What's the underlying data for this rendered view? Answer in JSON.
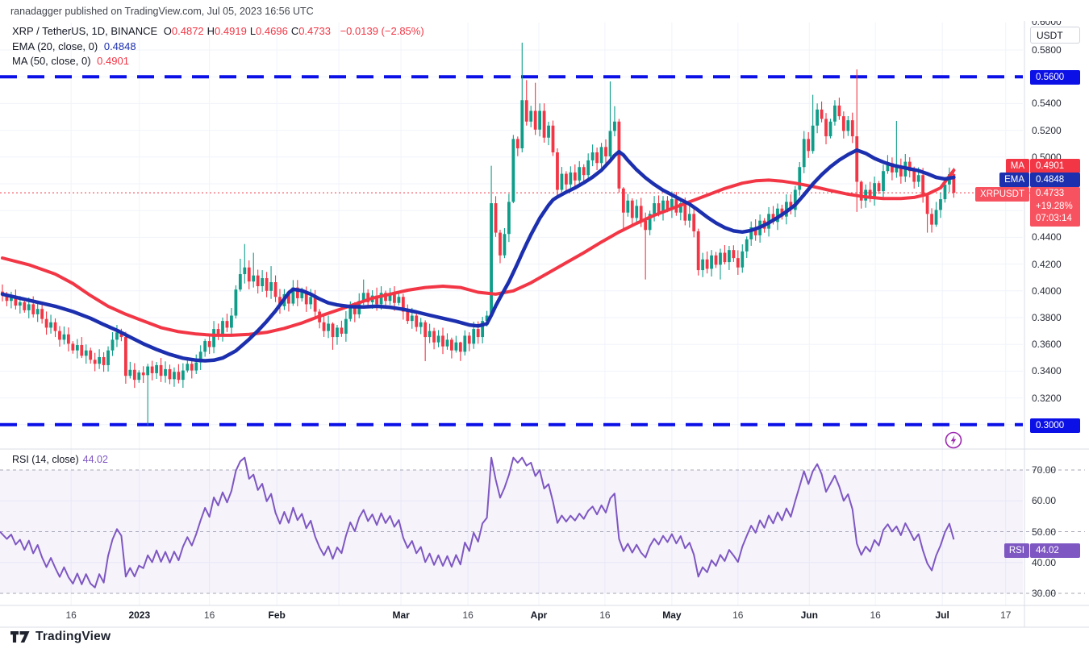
{
  "attribution": "ranadagger published on TradingView.com, Jul 05, 2023 16:56 UTC",
  "legend": {
    "symbol": "XRP / TetherUS, 1D, BINANCE",
    "ohlc": [
      {
        "k": "O",
        "v": "0.4872"
      },
      {
        "k": "H",
        "v": "0.4919"
      },
      {
        "k": "L",
        "v": "0.4696"
      },
      {
        "k": "C",
        "v": "0.4733"
      }
    ],
    "change": "−0.0139 (−2.85%)",
    "ema_label": "EMA (20, close, 0)",
    "ema_value": "0.4848",
    "ma_label": "MA (50, close, 0)",
    "ma_value": "0.4901"
  },
  "rsi_legend": {
    "label": "RSI (14, close)",
    "value": "44.02"
  },
  "axis": {
    "currency_box": "USDT",
    "top_partial_label": "0.6000",
    "price_ticks": [
      {
        "label": "0.5800",
        "value": 0.58
      },
      {
        "label": "0.5400",
        "value": 0.54
      },
      {
        "label": "0.5200",
        "value": 0.52
      },
      {
        "label": "0.5000",
        "value": 0.5
      },
      {
        "label": "0.4400",
        "value": 0.44
      },
      {
        "label": "0.4200",
        "value": 0.42
      },
      {
        "label": "0.4000",
        "value": 0.4
      },
      {
        "label": "0.3800",
        "value": 0.38
      },
      {
        "label": "0.3600",
        "value": 0.36
      },
      {
        "label": "0.3400",
        "value": 0.34
      },
      {
        "label": "0.3200",
        "value": 0.32
      }
    ],
    "rsi_ticks": [
      {
        "label": "70.00",
        "value": 70
      },
      {
        "label": "60.00",
        "value": 60
      },
      {
        "label": "50.00",
        "value": 50
      },
      {
        "label": "40.00",
        "value": 40
      },
      {
        "label": "30.00",
        "value": 30
      }
    ],
    "x_ticks": [
      {
        "label": "16",
        "pos": 15.6,
        "bold": false
      },
      {
        "label": "2023",
        "pos": 31.1,
        "bold": true
      },
      {
        "label": "16",
        "pos": 47.0,
        "bold": false
      },
      {
        "label": "Feb",
        "pos": 62.3,
        "bold": true
      },
      {
        "label": "Mar",
        "pos": 90.5,
        "bold": true
      },
      {
        "label": "16",
        "pos": 105.7,
        "bold": false
      },
      {
        "label": "Apr",
        "pos": 121.8,
        "bold": true
      },
      {
        "label": "16",
        "pos": 136.8,
        "bold": false
      },
      {
        "label": "May",
        "pos": 152.0,
        "bold": true
      },
      {
        "label": "16",
        "pos": 167.0,
        "bold": false
      },
      {
        "label": "Jun",
        "pos": 183.2,
        "bold": true
      },
      {
        "label": "16",
        "pos": 198.2,
        "bold": false
      },
      {
        "label": "Jul",
        "pos": 213.4,
        "bold": true
      },
      {
        "label": "17",
        "pos": 227.8,
        "bold": false
      }
    ],
    "extra_grid_pos": [
      76.4
    ],
    "badges": {
      "resistance": {
        "label": "0.5600",
        "value": 0.56
      },
      "support": {
        "label": "0.3000",
        "value": 0.3
      },
      "ma": {
        "tag": "MA",
        "label": "0.4901",
        "value": 0.4901
      },
      "ema": {
        "tag": "EMA",
        "label": "0.4848",
        "value": 0.4848
      },
      "last": {
        "tag": "XRPUSDT",
        "price": "0.4733",
        "change": "+19.28%",
        "countdown": "07:03:14",
        "value": 0.4733
      },
      "rsi": {
        "tag": "RSI",
        "label": "44.02",
        "value": 44.02
      }
    }
  },
  "footer": {
    "brand": "TradingView"
  },
  "colors": {
    "up": "#0f9d8a",
    "down": "#f23645",
    "ma50": "#f23645",
    "ema20": "#1c2fae",
    "level": "#0b10e6",
    "last_price_line": "#f23645",
    "rsi": "#7e57c2",
    "rsi_band_fill": "#7e57c2",
    "grid": "#f0f3fa",
    "separator": "#d8dce5",
    "rsi_dashed": "#a5a8b6"
  },
  "chart_data": {
    "type": "candlestick",
    "title": "XRP / TetherUS, 1D, BINANCE",
    "ylabel": "USDT",
    "price_axis_range": [
      0.2875,
      0.6
    ],
    "rsi_axis_range": [
      26,
      74
    ],
    "levels": [
      0.56,
      0.3
    ],
    "last_price": 0.4733,
    "grid_price_top": 0.58,
    "grid_price_step": 0.02,
    "grid_price_count": 15,
    "candles": {
      "first_open": 0.3995,
      "closes": [
        0.397,
        0.3925,
        0.395,
        0.389,
        0.3915,
        0.3855,
        0.39,
        0.3825,
        0.3865,
        0.379,
        0.3725,
        0.3765,
        0.37,
        0.3635,
        0.3675,
        0.3605,
        0.3555,
        0.3595,
        0.3515,
        0.3555,
        0.3485,
        0.3455,
        0.3505,
        0.3445,
        0.3555,
        0.3635,
        0.369,
        0.3655,
        0.3365,
        0.341,
        0.3335,
        0.339,
        0.337,
        0.3435,
        0.3385,
        0.3445,
        0.3365,
        0.3415,
        0.334,
        0.3395,
        0.3335,
        0.3405,
        0.3455,
        0.3405,
        0.3465,
        0.3545,
        0.3625,
        0.358,
        0.3715,
        0.3675,
        0.3775,
        0.3725,
        0.3815,
        0.401,
        0.4125,
        0.4175,
        0.407,
        0.4115,
        0.4035,
        0.4095,
        0.4,
        0.4065,
        0.3955,
        0.3885,
        0.3975,
        0.3905,
        0.4025,
        0.3945,
        0.3995,
        0.39,
        0.3955,
        0.3845,
        0.3765,
        0.37,
        0.3755,
        0.3655,
        0.3725,
        0.368,
        0.379,
        0.3885,
        0.3825,
        0.3925,
        0.3985,
        0.3915,
        0.3965,
        0.39,
        0.3985,
        0.3925,
        0.3975,
        0.391,
        0.3955,
        0.3845,
        0.3775,
        0.3815,
        0.373,
        0.3765,
        0.3655,
        0.37,
        0.3615,
        0.3665,
        0.3585,
        0.3635,
        0.3555,
        0.3615,
        0.3545,
        0.3665,
        0.3605,
        0.3715,
        0.3655,
        0.3775,
        0.3815,
        0.4655,
        0.4435,
        0.4265,
        0.4425,
        0.4665,
        0.5135,
        0.5065,
        0.5425,
        0.5265,
        0.5345,
        0.5205,
        0.5345,
        0.5145,
        0.5235,
        0.5035,
        0.4755,
        0.4875,
        0.4795,
        0.4885,
        0.4825,
        0.4925,
        0.4865,
        0.4975,
        0.5035,
        0.4955,
        0.5075,
        0.5005,
        0.5195,
        0.5265,
        0.4765,
        0.4585,
        0.4675,
        0.4545,
        0.4635,
        0.4525,
        0.4455,
        0.4575,
        0.4655,
        0.4585,
        0.4675,
        0.4605,
        0.4685,
        0.4585,
        0.4655,
        0.4525,
        0.4575,
        0.4445,
        0.4155,
        0.4235,
        0.4165,
        0.4265,
        0.4195,
        0.4285,
        0.4215,
        0.4305,
        0.4245,
        0.4175,
        0.4295,
        0.4385,
        0.4475,
        0.4415,
        0.4525,
        0.4465,
        0.4575,
        0.4515,
        0.4615,
        0.4555,
        0.4665,
        0.4605,
        0.4755,
        0.4925,
        0.5135,
        0.5045,
        0.5235,
        0.5355,
        0.5285,
        0.5155,
        0.5265,
        0.5385,
        0.5305,
        0.5195,
        0.5275,
        0.5155,
        0.4815,
        0.4675,
        0.4755,
        0.4695,
        0.4805,
        0.4745,
        0.4895,
        0.4955,
        0.4885,
        0.4935,
        0.4855,
        0.4965,
        0.4895,
        0.4815,
        0.4865,
        0.4715,
        0.4575,
        0.4495,
        0.4605,
        0.4685,
        0.4795,
        0.4872,
        0.4733
      ],
      "wick_overrides": {
        "33": [
          0.3455,
          0.2995
        ],
        "54": [
          0.424,
          0.3995
        ],
        "55": [
          0.435,
          0.4055
        ],
        "57": [
          0.4285,
          0.4025
        ],
        "61": [
          0.4185,
          0.394
        ],
        "75": [
          0.3765,
          0.356
        ],
        "82": [
          0.4085,
          0.3895
        ],
        "96": [
          0.378,
          0.3475
        ],
        "104": [
          0.362,
          0.3476
        ],
        "111": [
          0.4935,
          0.3795
        ],
        "116": [
          0.5165,
          0.4655
        ],
        "118": [
          0.5855,
          0.5035
        ],
        "119": [
          0.5575,
          0.5235
        ],
        "121": [
          0.5555,
          0.5165
        ],
        "126": [
          0.5065,
          0.4715
        ],
        "138": [
          0.5565,
          0.4985
        ],
        "139": [
          0.538,
          0.5155
        ],
        "140": [
          0.5285,
          0.4735
        ],
        "141": [
          0.4775,
          0.4445
        ],
        "146": [
          0.4585,
          0.4085
        ],
        "158": [
          0.4465,
          0.4115
        ],
        "163": [
          0.4315,
          0.4085
        ],
        "184": [
          0.5465,
          0.5025
        ],
        "189": [
          0.5425,
          0.5235
        ],
        "194": [
          0.5655,
          0.459
        ],
        "195": [
          0.4825,
          0.4615
        ],
        "203": [
          0.527,
          0.4845
        ],
        "210": [
          0.4725,
          0.4435
        ],
        "216": [
          0.4919,
          0.4696
        ]
      }
    },
    "series": [
      {
        "name": "MA 50",
        "points": [
          [
            0,
            0.4246
          ],
          [
            6,
            0.4195
          ],
          [
            12,
            0.4125
          ],
          [
            16,
            0.4055
          ],
          [
            20,
            0.3965
          ],
          [
            24,
            0.3885
          ],
          [
            28,
            0.3825
          ],
          [
            32,
            0.3775
          ],
          [
            36,
            0.3725
          ],
          [
            40,
            0.3695
          ],
          [
            44,
            0.3678
          ],
          [
            48,
            0.3668
          ],
          [
            52,
            0.3668
          ],
          [
            56,
            0.3675
          ],
          [
            60,
            0.369
          ],
          [
            64,
            0.372
          ],
          [
            68,
            0.376
          ],
          [
            72,
            0.381
          ],
          [
            76,
            0.3855
          ],
          [
            80,
            0.39
          ],
          [
            84,
            0.3945
          ],
          [
            88,
            0.3975
          ],
          [
            92,
            0.4005
          ],
          [
            96,
            0.4025
          ],
          [
            100,
            0.4035
          ],
          [
            104,
            0.4025
          ],
          [
            108,
            0.399
          ],
          [
            112,
            0.3975
          ],
          [
            116,
            0.4
          ],
          [
            120,
            0.406
          ],
          [
            124,
            0.4135
          ],
          [
            128,
            0.421
          ],
          [
            132,
            0.4285
          ],
          [
            136,
            0.4365
          ],
          [
            140,
            0.444
          ],
          [
            144,
            0.4505
          ],
          [
            148,
            0.4565
          ],
          [
            152,
            0.4615
          ],
          [
            156,
            0.4665
          ],
          [
            160,
            0.4715
          ],
          [
            164,
            0.4765
          ],
          [
            168,
            0.4805
          ],
          [
            171,
            0.4822
          ],
          [
            174,
            0.4828
          ],
          [
            177,
            0.482
          ],
          [
            180,
            0.4805
          ],
          [
            184,
            0.478
          ],
          [
            188,
            0.475
          ],
          [
            192,
            0.4722
          ],
          [
            196,
            0.4702
          ],
          [
            200,
            0.469
          ],
          [
            204,
            0.469
          ],
          [
            207,
            0.4698
          ],
          [
            210,
            0.4722
          ],
          [
            213,
            0.477
          ],
          [
            216,
            0.4901
          ]
        ]
      },
      {
        "name": "EMA 20",
        "points": [
          [
            0,
            0.3975
          ],
          [
            4,
            0.3945
          ],
          [
            8,
            0.3915
          ],
          [
            12,
            0.3885
          ],
          [
            16,
            0.3845
          ],
          [
            20,
            0.3795
          ],
          [
            23,
            0.3748
          ],
          [
            26,
            0.3705
          ],
          [
            29,
            0.3655
          ],
          [
            32,
            0.3605
          ],
          [
            35,
            0.3562
          ],
          [
            38,
            0.3525
          ],
          [
            41,
            0.3497
          ],
          [
            44,
            0.3482
          ],
          [
            46,
            0.3478
          ],
          [
            48,
            0.3482
          ],
          [
            50,
            0.3498
          ],
          [
            53,
            0.3552
          ],
          [
            56,
            0.3638
          ],
          [
            58,
            0.3702
          ],
          [
            60,
            0.3772
          ],
          [
            62,
            0.385
          ],
          [
            64,
            0.394
          ],
          [
            65,
            0.3985
          ],
          [
            66,
            0.4012
          ],
          [
            68,
            0.4002
          ],
          [
            70,
            0.3975
          ],
          [
            72,
            0.394
          ],
          [
            74,
            0.391
          ],
          [
            76,
            0.3895
          ],
          [
            79,
            0.3882
          ],
          [
            82,
            0.388
          ],
          [
            85,
            0.3885
          ],
          [
            88,
            0.3878
          ],
          [
            91,
            0.3862
          ],
          [
            94,
            0.3842
          ],
          [
            97,
            0.3818
          ],
          [
            100,
            0.3795
          ],
          [
            103,
            0.3772
          ],
          [
            106,
            0.3745
          ],
          [
            108,
            0.3738
          ],
          [
            110,
            0.3755
          ],
          [
            111,
            0.3818
          ],
          [
            112,
            0.3888
          ],
          [
            113,
            0.395
          ],
          [
            114,
            0.4008
          ],
          [
            115,
            0.4068
          ],
          [
            116,
            0.4138
          ],
          [
            117,
            0.4208
          ],
          [
            118,
            0.4282
          ],
          [
            119,
            0.4352
          ],
          [
            120,
            0.442
          ],
          [
            121,
            0.4482
          ],
          [
            122,
            0.4542
          ],
          [
            123,
            0.4592
          ],
          [
            124,
            0.464
          ],
          [
            125,
            0.468
          ],
          [
            126,
            0.4702
          ],
          [
            128,
            0.4738
          ],
          [
            130,
            0.477
          ],
          [
            132,
            0.4808
          ],
          [
            134,
            0.485
          ],
          [
            136,
            0.4902
          ],
          [
            138,
            0.4972
          ],
          [
            139,
            0.5012
          ],
          [
            140,
            0.504
          ],
          [
            141,
            0.5015
          ],
          [
            142,
            0.4975
          ],
          [
            144,
            0.4905
          ],
          [
            146,
            0.4845
          ],
          [
            148,
            0.4795
          ],
          [
            150,
            0.4752
          ],
          [
            152,
            0.4718
          ],
          [
            154,
            0.4682
          ],
          [
            156,
            0.4648
          ],
          [
            158,
            0.4602
          ],
          [
            160,
            0.4552
          ],
          [
            162,
            0.4508
          ],
          [
            164,
            0.4472
          ],
          [
            166,
            0.4448
          ],
          [
            168,
            0.444
          ],
          [
            170,
            0.4452
          ],
          [
            172,
            0.4475
          ],
          [
            174,
            0.4508
          ],
          [
            176,
            0.4548
          ],
          [
            178,
            0.4592
          ],
          [
            180,
            0.4642
          ],
          [
            182,
            0.4718
          ],
          [
            184,
            0.4798
          ],
          [
            186,
            0.4868
          ],
          [
            188,
            0.4928
          ],
          [
            190,
            0.4978
          ],
          [
            192,
            0.5018
          ],
          [
            194,
            0.5052
          ],
          [
            196,
            0.5028
          ],
          [
            198,
            0.499
          ],
          [
            200,
            0.4962
          ],
          [
            202,
            0.494
          ],
          [
            204,
            0.4925
          ],
          [
            206,
            0.4912
          ],
          [
            208,
            0.4898
          ],
          [
            210,
            0.4875
          ],
          [
            212,
            0.4848
          ],
          [
            214,
            0.4836
          ],
          [
            216,
            0.4848
          ]
        ]
      },
      {
        "name": "RSI 14",
        "derived_from": "closes",
        "period": 14,
        "overbought": 70,
        "oversold": 30
      }
    ]
  }
}
